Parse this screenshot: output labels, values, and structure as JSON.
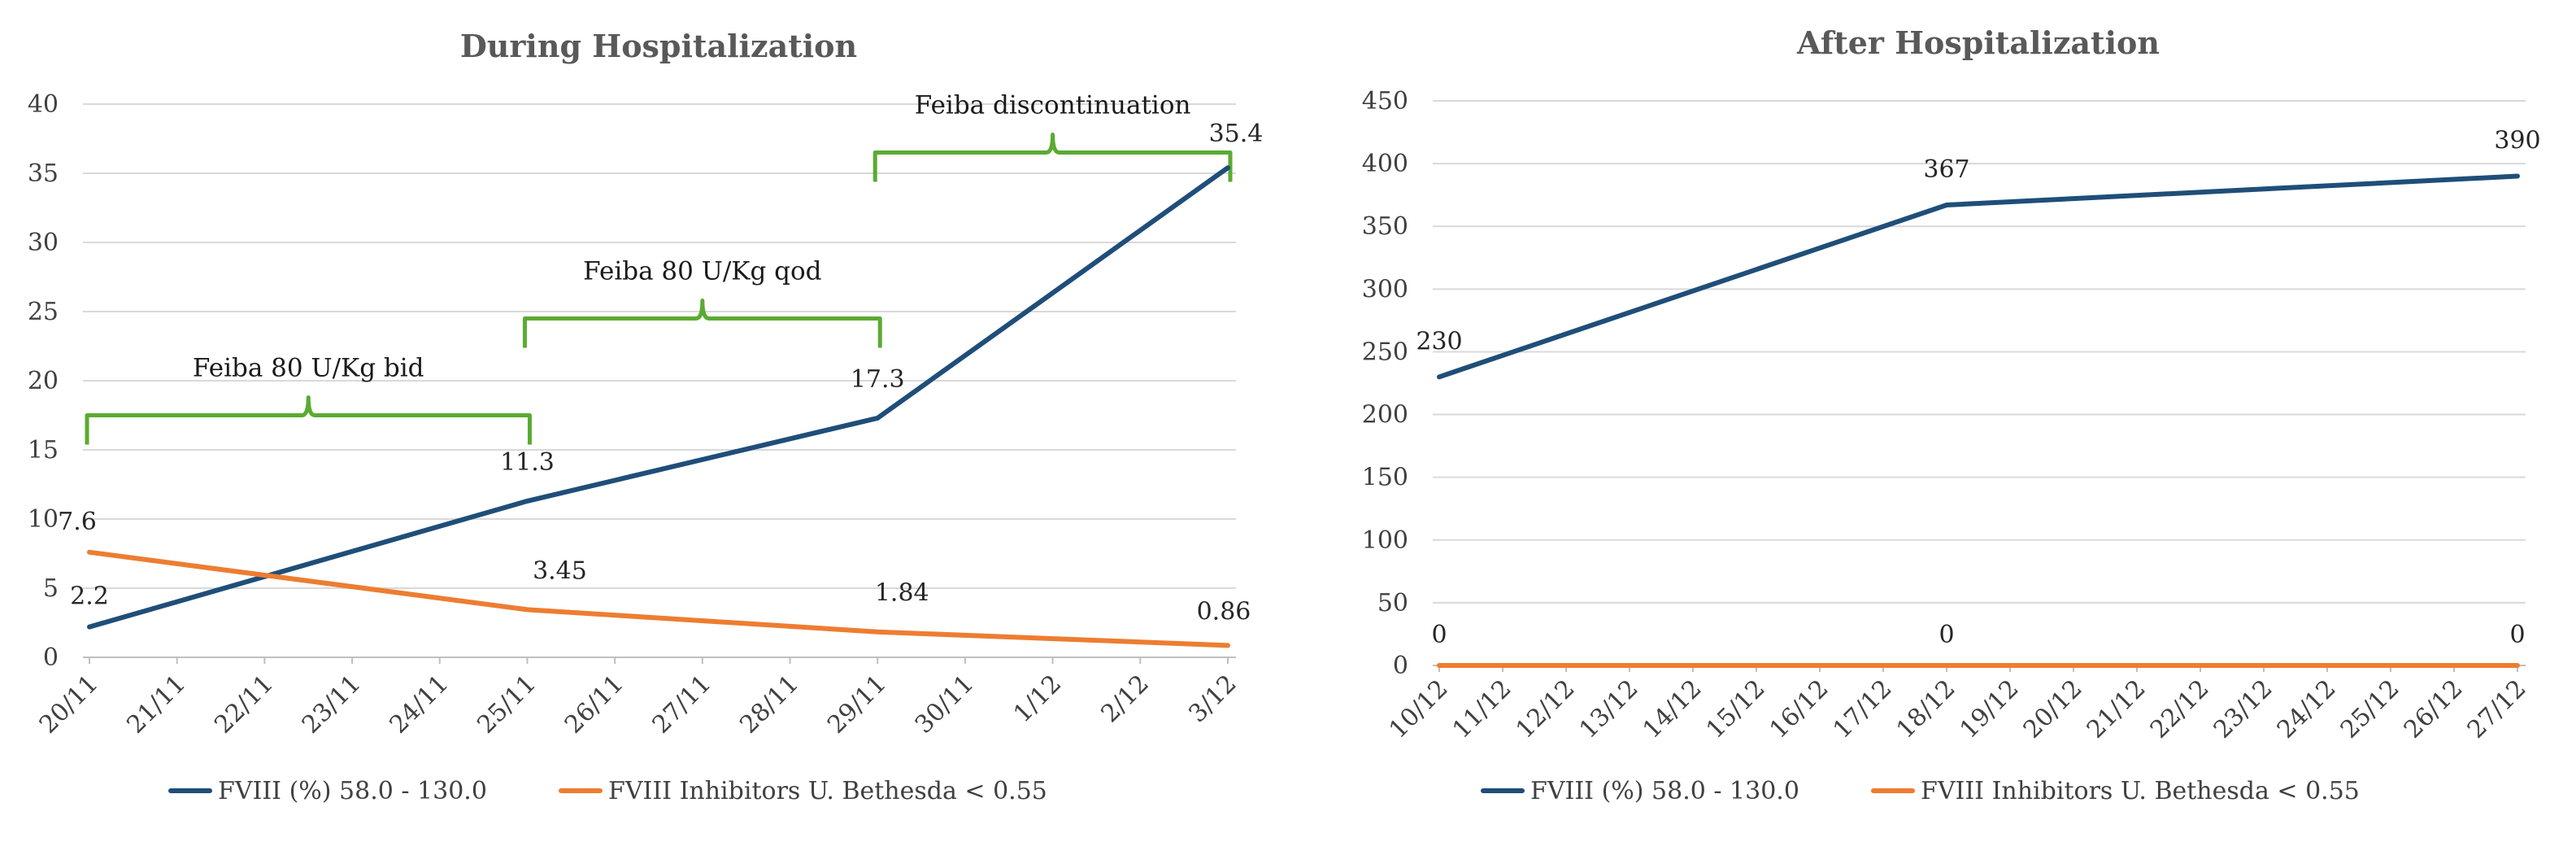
{
  "chart_data": [
    {
      "type": "line",
      "title": "During Hospitalization",
      "categories": [
        "20/11",
        "21/11",
        "22/11",
        "23/11",
        "24/11",
        "25/11",
        "26/11",
        "27/11",
        "28/11",
        "29/11",
        "30/11",
        "1/12",
        "2/12",
        "3/12"
      ],
      "ylim": [
        0,
        40
      ],
      "yticks": [
        "0",
        "5",
        "10",
        "15",
        "20",
        "25",
        "30",
        "35",
        "40"
      ],
      "grid": true,
      "legend": "bottom",
      "series": [
        {
          "name": "FVIII (%) 58.0 - 130.0",
          "color": "#1f4e79",
          "points": [
            {
              "x": "20/11",
              "y": 2.2,
              "label": "2.2"
            },
            {
              "x": "25/11",
              "y": 11.3,
              "label": "11.3"
            },
            {
              "x": "29/11",
              "y": 17.3,
              "label": "17.3"
            },
            {
              "x": "3/12",
              "y": 35.4,
              "label": "35.4"
            }
          ]
        },
        {
          "name": "FVIII Inhibitors U. Bethesda < 0.55",
          "color": "#ed7d31",
          "points": [
            {
              "x": "20/11",
              "y": 7.6,
              "label": "7.6"
            },
            {
              "x": "25/11",
              "y": 3.45,
              "label": "3.45"
            },
            {
              "x": "29/11",
              "y": 1.84,
              "label": "1.84"
            },
            {
              "x": "3/12",
              "y": 0.86,
              "label": "0.86"
            }
          ]
        }
      ],
      "annotations": [
        {
          "text": "Feiba 80 U/Kg bid",
          "from": "20/11",
          "to": "25/11",
          "y": 17.5,
          "color": "#5aab32"
        },
        {
          "text": "Feiba 80 U/Kg qod",
          "from": "25/11",
          "to": "29/11",
          "y": 24.5,
          "color": "#5aab32"
        },
        {
          "text": "Feiba discontinuation",
          "from": "29/11",
          "to": "3/12",
          "y": 36.5,
          "color": "#5aab32"
        }
      ]
    },
    {
      "type": "line",
      "title": "After Hospitalization",
      "categories": [
        "10/12",
        "11/12",
        "12/12",
        "13/12",
        "14/12",
        "15/12",
        "16/12",
        "17/12",
        "18/12",
        "19/12",
        "20/12",
        "21/12",
        "22/12",
        "23/12",
        "24/12",
        "25/12",
        "26/12",
        "27/12"
      ],
      "ylim": [
        0,
        450
      ],
      "yticks": [
        "0",
        "50",
        "100",
        "150",
        "200",
        "250",
        "300",
        "350",
        "400",
        "450"
      ],
      "grid": true,
      "legend": "bottom",
      "series": [
        {
          "name": "FVIII (%) 58.0 - 130.0",
          "color": "#1f4e79",
          "points": [
            {
              "x": "10/12",
              "y": 230,
              "label": "230"
            },
            {
              "x": "18/12",
              "y": 367,
              "label": "367"
            },
            {
              "x": "27/12",
              "y": 390,
              "label": "390"
            }
          ]
        },
        {
          "name": "FVIII Inhibitors U. Bethesda < 0.55",
          "color": "#ed7d31",
          "points": [
            {
              "x": "10/12",
              "y": 0,
              "label": "0"
            },
            {
              "x": "18/12",
              "y": 0,
              "label": "0"
            },
            {
              "x": "27/12",
              "y": 0,
              "label": "0"
            }
          ]
        }
      ],
      "annotations": []
    }
  ]
}
